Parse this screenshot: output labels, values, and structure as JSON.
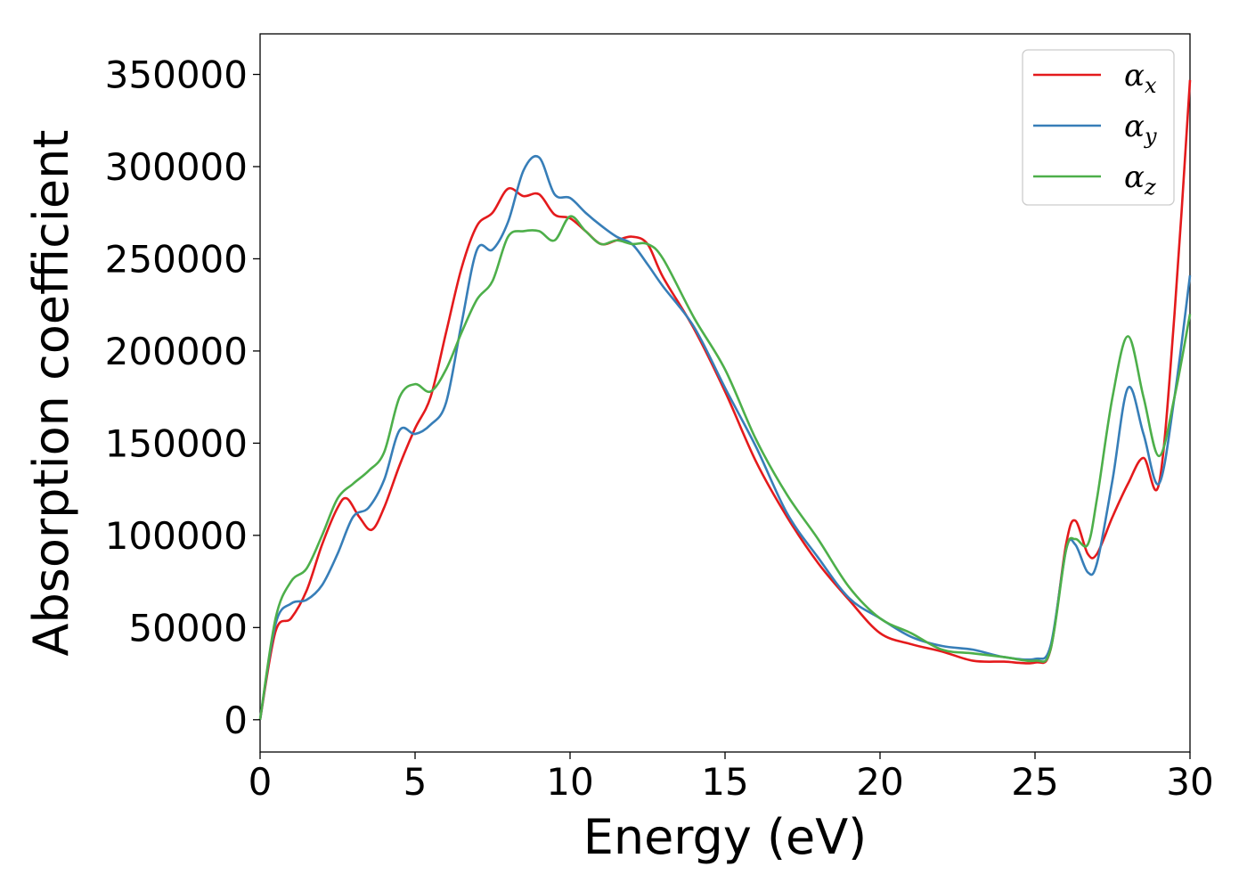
{
  "chart_data": {
    "type": "line",
    "title": "",
    "xlabel": "Energy (eV)",
    "ylabel": "Absorption coefficient",
    "xlim": [
      0,
      30
    ],
    "ylim": [
      -17500,
      372000
    ],
    "xticks": [
      0,
      5,
      10,
      15,
      20,
      25,
      30
    ],
    "yticks": [
      0,
      50000,
      100000,
      150000,
      200000,
      250000,
      300000,
      350000
    ],
    "grid": false,
    "legend_position": "top-right",
    "series": [
      {
        "name": "α_x",
        "legend_base": "α",
        "legend_sub": "x",
        "color": "#e41a1c",
        "x": [
          0,
          0.5,
          1.0,
          1.5,
          2.0,
          2.5,
          2.8,
          3.2,
          3.6,
          4.0,
          4.5,
          5.0,
          5.5,
          6.0,
          6.5,
          7.0,
          7.5,
          8.0,
          8.5,
          9.0,
          9.5,
          10.0,
          10.5,
          11.0,
          11.5,
          12.0,
          12.5,
          13.0,
          14.0,
          15.0,
          16.0,
          17.0,
          18.0,
          19.0,
          20.0,
          21.0,
          22.0,
          23.0,
          24.0,
          25.0,
          25.5,
          26.0,
          26.3,
          26.7,
          27.0,
          27.5,
          28.0,
          28.5,
          29.0,
          29.5,
          30.0
        ],
        "values": [
          0,
          48000,
          55000,
          70000,
          95000,
          115000,
          120000,
          110000,
          103000,
          115000,
          138000,
          158000,
          175000,
          210000,
          245000,
          268000,
          275000,
          288000,
          284000,
          285000,
          274000,
          272000,
          265000,
          258000,
          260000,
          262000,
          258000,
          240000,
          212000,
          178000,
          140000,
          110000,
          85000,
          65000,
          47000,
          41000,
          37000,
          32000,
          31500,
          31000,
          38000,
          95000,
          108000,
          90000,
          90000,
          110000,
          128000,
          142000,
          128000,
          220000,
          347000
        ]
      },
      {
        "name": "α_y",
        "legend_base": "α",
        "legend_sub": "y",
        "color": "#377eb8",
        "x": [
          0,
          0.5,
          1.0,
          1.5,
          2.0,
          2.5,
          3.0,
          3.5,
          4.0,
          4.5,
          5.0,
          5.5,
          6.0,
          6.5,
          7.0,
          7.5,
          8.0,
          8.5,
          9.0,
          9.5,
          10.0,
          10.5,
          11.0,
          11.5,
          12.0,
          12.5,
          13.0,
          14.0,
          15.0,
          16.0,
          17.0,
          18.0,
          19.0,
          20.0,
          21.0,
          22.0,
          23.0,
          24.0,
          25.0,
          25.5,
          26.0,
          26.3,
          26.7,
          27.0,
          27.5,
          28.0,
          28.5,
          29.0,
          29.5,
          30.0
        ],
        "values": [
          0,
          52000,
          63000,
          65000,
          73000,
          90000,
          110000,
          115000,
          130000,
          157000,
          155000,
          160000,
          172000,
          215000,
          255000,
          255000,
          270000,
          298000,
          305000,
          285000,
          283000,
          275000,
          268000,
          262000,
          258000,
          247000,
          235000,
          213000,
          180000,
          148000,
          112000,
          88000,
          66000,
          55000,
          45000,
          40000,
          38000,
          34000,
          33000,
          40000,
          92000,
          95000,
          80000,
          85000,
          130000,
          180000,
          155000,
          128000,
          175000,
          241000
        ]
      },
      {
        "name": "α_z",
        "legend_base": "α",
        "legend_sub": "z",
        "color": "#4daf4a",
        "x": [
          0,
          0.5,
          1.0,
          1.5,
          2.0,
          2.5,
          3.0,
          3.5,
          4.0,
          4.5,
          5.0,
          5.5,
          6.0,
          6.5,
          7.0,
          7.5,
          8.0,
          8.5,
          9.0,
          9.5,
          10.0,
          10.5,
          11.0,
          11.5,
          12.0,
          12.5,
          13.0,
          14.0,
          15.0,
          16.0,
          17.0,
          18.0,
          19.0,
          20.0,
          21.0,
          22.0,
          23.0,
          24.0,
          25.0,
          25.5,
          26.0,
          26.3,
          26.7,
          27.0,
          27.5,
          28.0,
          28.5,
          29.0,
          29.5,
          30.0
        ],
        "values": [
          0,
          55000,
          75000,
          82000,
          100000,
          120000,
          128000,
          135000,
          145000,
          175000,
          182000,
          178000,
          190000,
          210000,
          228000,
          238000,
          262000,
          265000,
          265000,
          260000,
          273000,
          265000,
          258000,
          260000,
          258000,
          258000,
          250000,
          218000,
          190000,
          152000,
          122000,
          98000,
          72000,
          55000,
          47000,
          38000,
          36000,
          34000,
          32000,
          38000,
          92000,
          98000,
          95000,
          120000,
          175000,
          208000,
          175000,
          143000,
          175000,
          220000
        ]
      }
    ]
  }
}
